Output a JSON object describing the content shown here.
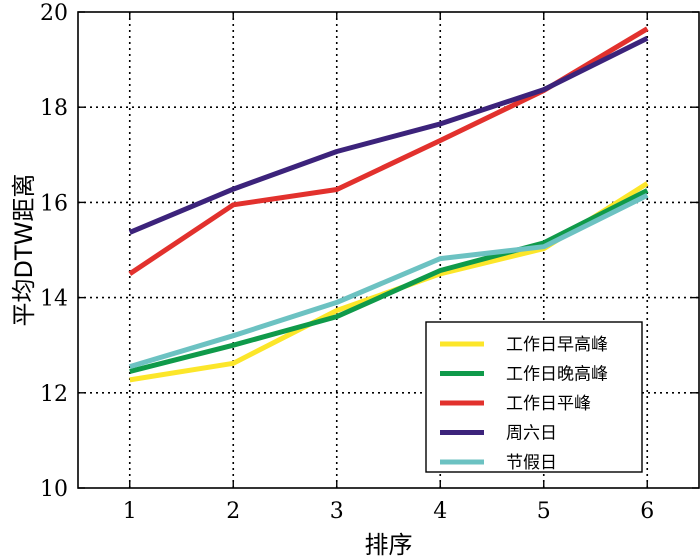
{
  "chart_data": {
    "type": "line",
    "xlabel": "排序",
    "ylabel": "平均DTW距离",
    "x": [
      1,
      2,
      3,
      4,
      5,
      6
    ],
    "xlim": [
      0.5,
      6.5
    ],
    "ylim": [
      10,
      20
    ],
    "xticks": [
      "1",
      "2",
      "3",
      "4",
      "5",
      "6"
    ],
    "yticks": [
      "10",
      "12",
      "14",
      "16",
      "18",
      "20"
    ],
    "grid": true,
    "legend_position": "lower-right",
    "series": [
      {
        "name": "工作日早高峰",
        "color": "#fce62a",
        "values": [
          12.27,
          12.62,
          13.73,
          14.5,
          15.03,
          16.4
        ]
      },
      {
        "name": "工作日晚高峰",
        "color": "#0f9a4a",
        "values": [
          12.45,
          13.0,
          13.6,
          14.57,
          15.15,
          16.25
        ]
      },
      {
        "name": "工作日平峰",
        "color": "#e2312d",
        "values": [
          14.5,
          15.95,
          16.27,
          17.3,
          18.35,
          19.65
        ]
      },
      {
        "name": "周六日",
        "color": "#3c237b",
        "values": [
          15.37,
          16.28,
          17.07,
          17.65,
          18.37,
          19.45
        ]
      },
      {
        "name": "节假日",
        "color": "#6cc2c2",
        "values": [
          12.55,
          13.2,
          13.9,
          14.82,
          15.07,
          16.15
        ]
      }
    ]
  }
}
